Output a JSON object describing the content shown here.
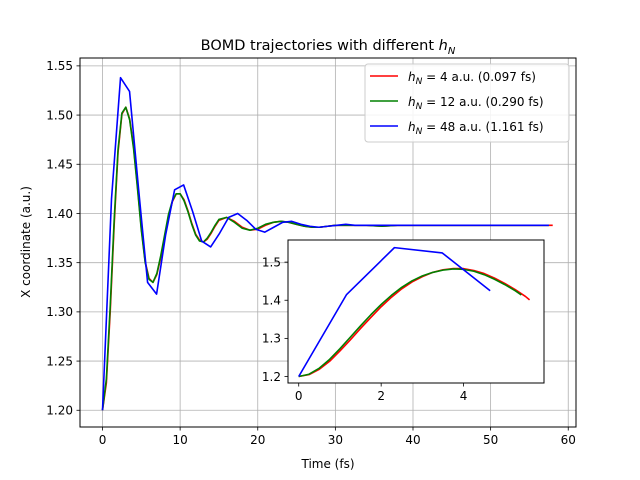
{
  "chart_data": [
    {
      "type": "line",
      "title": "BOMD trajectories with different h_N",
      "title_text": "BOMD trajectories with different ",
      "title_math_main": "h",
      "title_math_sub": "N",
      "xlabel": "Time (fs)",
      "ylabel": "X coordinate (a.u.)",
      "xlim": [
        -2.9,
        61.0
      ],
      "ylim": [
        1.183,
        1.558
      ],
      "xticks": [
        0,
        10,
        20,
        30,
        40,
        50,
        60
      ],
      "xtick_labels": [
        "0",
        "10",
        "20",
        "30",
        "40",
        "50",
        "60"
      ],
      "yticks": [
        1.2,
        1.25,
        1.3,
        1.35,
        1.4,
        1.45,
        1.5,
        1.55
      ],
      "ytick_labels": [
        "1.20",
        "1.25",
        "1.30",
        "1.35",
        "1.40",
        "1.45",
        "1.50",
        "1.55"
      ],
      "grid": true,
      "legend_position": "top-right",
      "series": [
        {
          "name": "h_N = 4 a.u. (0.097 fs)",
          "legend_suffix": " = 4 a.u. (0.097 fs)",
          "color": "#ff0000",
          "x": [
            0,
            0.5,
            1,
            1.5,
            2,
            2.5,
            3,
            3.5,
            4,
            4.5,
            5,
            5.5,
            6,
            6.5,
            7,
            7.5,
            8,
            8.5,
            9,
            9.5,
            10,
            10.5,
            11,
            11.5,
            12,
            12.5,
            13,
            13.5,
            14,
            14.5,
            15,
            16,
            17,
            18,
            19,
            20,
            21,
            22,
            23,
            24,
            25,
            26,
            27,
            28,
            29,
            30,
            31,
            32,
            34,
            36,
            38,
            40,
            44,
            48,
            52,
            56,
            58
          ],
          "y": [
            1.2,
            1.228,
            1.301,
            1.388,
            1.462,
            1.501,
            1.508,
            1.496,
            1.468,
            1.428,
            1.385,
            1.351,
            1.334,
            1.33,
            1.338,
            1.355,
            1.376,
            1.397,
            1.412,
            1.42,
            1.42,
            1.414,
            1.403,
            1.39,
            1.379,
            1.373,
            1.371,
            1.374,
            1.38,
            1.387,
            1.393,
            1.396,
            1.392,
            1.386,
            1.383,
            1.384,
            1.388,
            1.391,
            1.392,
            1.391,
            1.389,
            1.387,
            1.386,
            1.386,
            1.387,
            1.388,
            1.388,
            1.388,
            1.388,
            1.387,
            1.388,
            1.388,
            1.388,
            1.388,
            1.388,
            1.388,
            1.388
          ]
        },
        {
          "name": "h_N = 12 a.u. (0.290 fs)",
          "legend_suffix": " = 12 a.u. (0.290 fs)",
          "color": "#008000",
          "x": [
            0,
            0.5,
            1,
            1.5,
            2,
            2.5,
            3,
            3.5,
            4,
            4.5,
            5,
            5.5,
            6,
            6.5,
            7,
            7.5,
            8,
            8.5,
            9,
            9.5,
            10,
            10.5,
            11,
            11.5,
            12,
            12.5,
            13,
            13.5,
            14,
            14.5,
            15,
            16,
            17,
            18,
            19,
            20,
            21,
            22,
            23,
            24,
            25,
            26,
            27,
            28,
            29,
            30,
            31,
            32,
            34,
            36,
            38,
            40,
            44,
            48,
            52,
            56,
            57.5
          ],
          "y": [
            1.2,
            1.232,
            1.307,
            1.393,
            1.465,
            1.502,
            1.508,
            1.495,
            1.466,
            1.426,
            1.383,
            1.35,
            1.333,
            1.33,
            1.339,
            1.357,
            1.378,
            1.399,
            1.413,
            1.42,
            1.42,
            1.413,
            1.402,
            1.389,
            1.378,
            1.372,
            1.371,
            1.375,
            1.381,
            1.388,
            1.394,
            1.396,
            1.391,
            1.385,
            1.383,
            1.385,
            1.389,
            1.391,
            1.392,
            1.391,
            1.389,
            1.387,
            1.386,
            1.386,
            1.387,
            1.388,
            1.388,
            1.388,
            1.388,
            1.387,
            1.388,
            1.388,
            1.388,
            1.388,
            1.388,
            1.388,
            1.388
          ]
        },
        {
          "name": "h_N = 48 a.u. (1.161 fs)",
          "legend_suffix": " = 48 a.u. (1.161 fs)",
          "color": "#0000ff",
          "x": [
            0,
            1.161,
            2.322,
            3.483,
            4.644,
            5.805,
            6.966,
            8.127,
            9.288,
            10.449,
            11.61,
            12.771,
            13.932,
            15.093,
            16.254,
            17.415,
            18.576,
            19.737,
            20.898,
            22.059,
            23.22,
            24.381,
            25.542,
            26.703,
            27.864,
            29.025,
            30.186,
            31.347,
            32.508,
            33.669,
            34.83,
            40,
            45,
            50,
            55,
            57.5
          ],
          "y": [
            1.2,
            1.415,
            1.538,
            1.524,
            1.425,
            1.33,
            1.318,
            1.378,
            1.424,
            1.429,
            1.402,
            1.372,
            1.366,
            1.38,
            1.396,
            1.4,
            1.393,
            1.384,
            1.381,
            1.386,
            1.391,
            1.392,
            1.389,
            1.387,
            1.386,
            1.387,
            1.388,
            1.389,
            1.388,
            1.388,
            1.388,
            1.388,
            1.388,
            1.388,
            1.388,
            1.388
          ]
        }
      ]
    },
    {
      "type": "line",
      "title": "",
      "xlim": [
        -0.26,
        5.95
      ],
      "ylim": [
        1.183,
        1.558
      ],
      "xticks": [
        0,
        2,
        4
      ],
      "xtick_labels": [
        "0",
        "2",
        "4"
      ],
      "yticks": [
        1.2,
        1.3,
        1.4,
        1.5
      ],
      "ytick_labels": [
        "1.2",
        "1.3",
        "1.4",
        "1.5"
      ],
      "grid": false,
      "series": [
        {
          "color": "#ff0000",
          "x": [
            0,
            0.25,
            0.5,
            0.75,
            1,
            1.25,
            1.5,
            1.75,
            2,
            2.25,
            2.5,
            2.75,
            3,
            3.25,
            3.5,
            3.75,
            4,
            4.25,
            4.5,
            4.75,
            5,
            5.25,
            5.5,
            5.6
          ],
          "y": [
            1.2,
            1.205,
            1.219,
            1.24,
            1.267,
            1.296,
            1.326,
            1.355,
            1.383,
            1.408,
            1.43,
            1.448,
            1.462,
            1.473,
            1.48,
            1.483,
            1.483,
            1.478,
            1.47,
            1.458,
            1.444,
            1.428,
            1.41,
            1.401
          ]
        },
        {
          "color": "#008000",
          "x": [
            0,
            0.25,
            0.5,
            0.75,
            1,
            1.25,
            1.5,
            1.75,
            2,
            2.25,
            2.5,
            2.75,
            3,
            3.25,
            3.5,
            3.75,
            4,
            4.25,
            4.5,
            4.75,
            5,
            5.25,
            5.4
          ],
          "y": [
            1.2,
            1.206,
            1.222,
            1.245,
            1.273,
            1.303,
            1.333,
            1.362,
            1.389,
            1.413,
            1.434,
            1.451,
            1.464,
            1.473,
            1.479,
            1.482,
            1.481,
            1.476,
            1.467,
            1.455,
            1.441,
            1.425,
            1.414
          ]
        },
        {
          "color": "#0000ff",
          "x": [
            0,
            1.161,
            2.322,
            3.483,
            4.644
          ],
          "y": [
            1.2,
            1.415,
            1.538,
            1.524,
            1.425
          ]
        }
      ]
    }
  ]
}
